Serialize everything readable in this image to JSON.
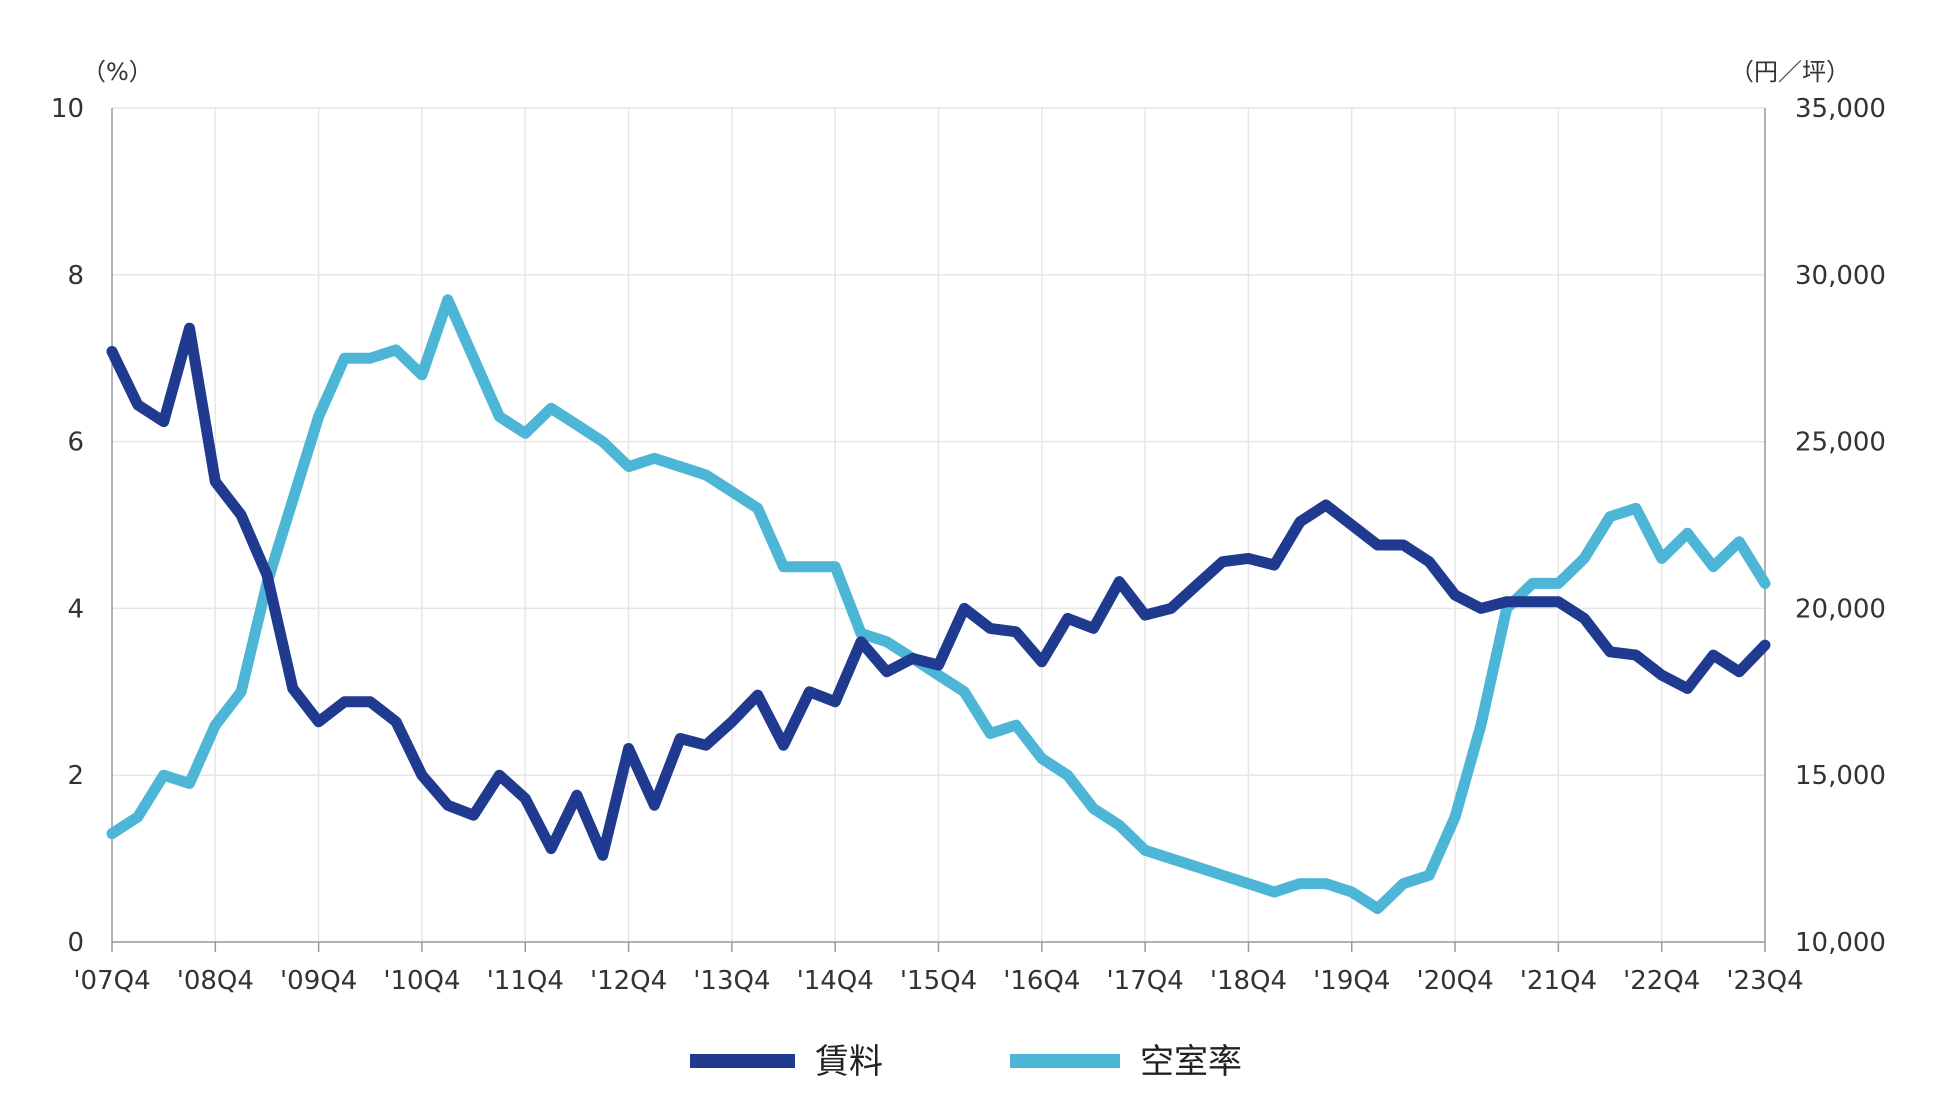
{
  "chart_data": {
    "type": "line",
    "title": "",
    "left_axis_unit": "（%）",
    "right_axis_unit": "（円／坪）",
    "y_left_lim": [
      0,
      10
    ],
    "y_left_ticks": [
      "0",
      "2",
      "4",
      "6",
      "8",
      "10"
    ],
    "y_right_lim": [
      10000,
      35000
    ],
    "y_right_ticks": [
      "10,000",
      "15,000",
      "20,000",
      "25,000",
      "30,000",
      "35,000"
    ],
    "x_tick_labels": [
      "'07Q4",
      "'08Q4",
      "'09Q4",
      "'10Q4",
      "'11Q4",
      "'12Q4",
      "'13Q4",
      "'14Q4",
      "'15Q4",
      "'16Q4",
      "'17Q4",
      "'18Q4",
      "'19Q4",
      "'20Q4",
      "'21Q4",
      "'22Q4",
      "'23Q4"
    ],
    "grid": true,
    "legend_position": "bottom",
    "series": [
      {
        "name": "賃料",
        "axis": "right",
        "color": "#1f3a8f",
        "values": [
          27700,
          26100,
          25600,
          28400,
          23800,
          22800,
          21000,
          17600,
          16600,
          17200,
          17200,
          16600,
          15000,
          14100,
          13800,
          15000,
          14300,
          12800,
          14400,
          12600,
          15800,
          14100,
          16100,
          15900,
          16600,
          17400,
          15900,
          17500,
          17200,
          19000,
          18100,
          18500,
          18300,
          20000,
          19400,
          19300,
          18400,
          19700,
          19400,
          20800,
          19800,
          20000,
          20700,
          21400,
          21500,
          21300,
          22600,
          23100,
          22500,
          21900,
          21900,
          21400,
          20400,
          20000,
          20200,
          20200,
          20200,
          19700,
          18700,
          18600,
          18000,
          17600,
          18600,
          18100,
          18900
        ]
      },
      {
        "name": "空室率",
        "axis": "left",
        "color": "#4db6d6",
        "values": [
          1.3,
          1.5,
          2.0,
          1.9,
          2.6,
          3.0,
          4.3,
          5.3,
          6.3,
          7.0,
          7.0,
          7.1,
          6.8,
          7.7,
          7.0,
          6.3,
          6.1,
          6.4,
          6.2,
          6.0,
          5.7,
          5.8,
          5.7,
          5.6,
          5.4,
          5.2,
          4.5,
          4.5,
          4.5,
          3.7,
          3.6,
          3.4,
          3.2,
          3.0,
          2.5,
          2.6,
          2.2,
          2.0,
          1.6,
          1.4,
          1.1,
          1.0,
          0.9,
          0.8,
          0.7,
          0.6,
          0.7,
          0.7,
          0.6,
          0.4,
          0.7,
          0.8,
          1.5,
          2.6,
          4.0,
          4.3,
          4.3,
          4.6,
          5.1,
          5.2,
          4.6,
          4.9,
          4.5,
          4.8,
          4.3
        ]
      }
    ]
  }
}
